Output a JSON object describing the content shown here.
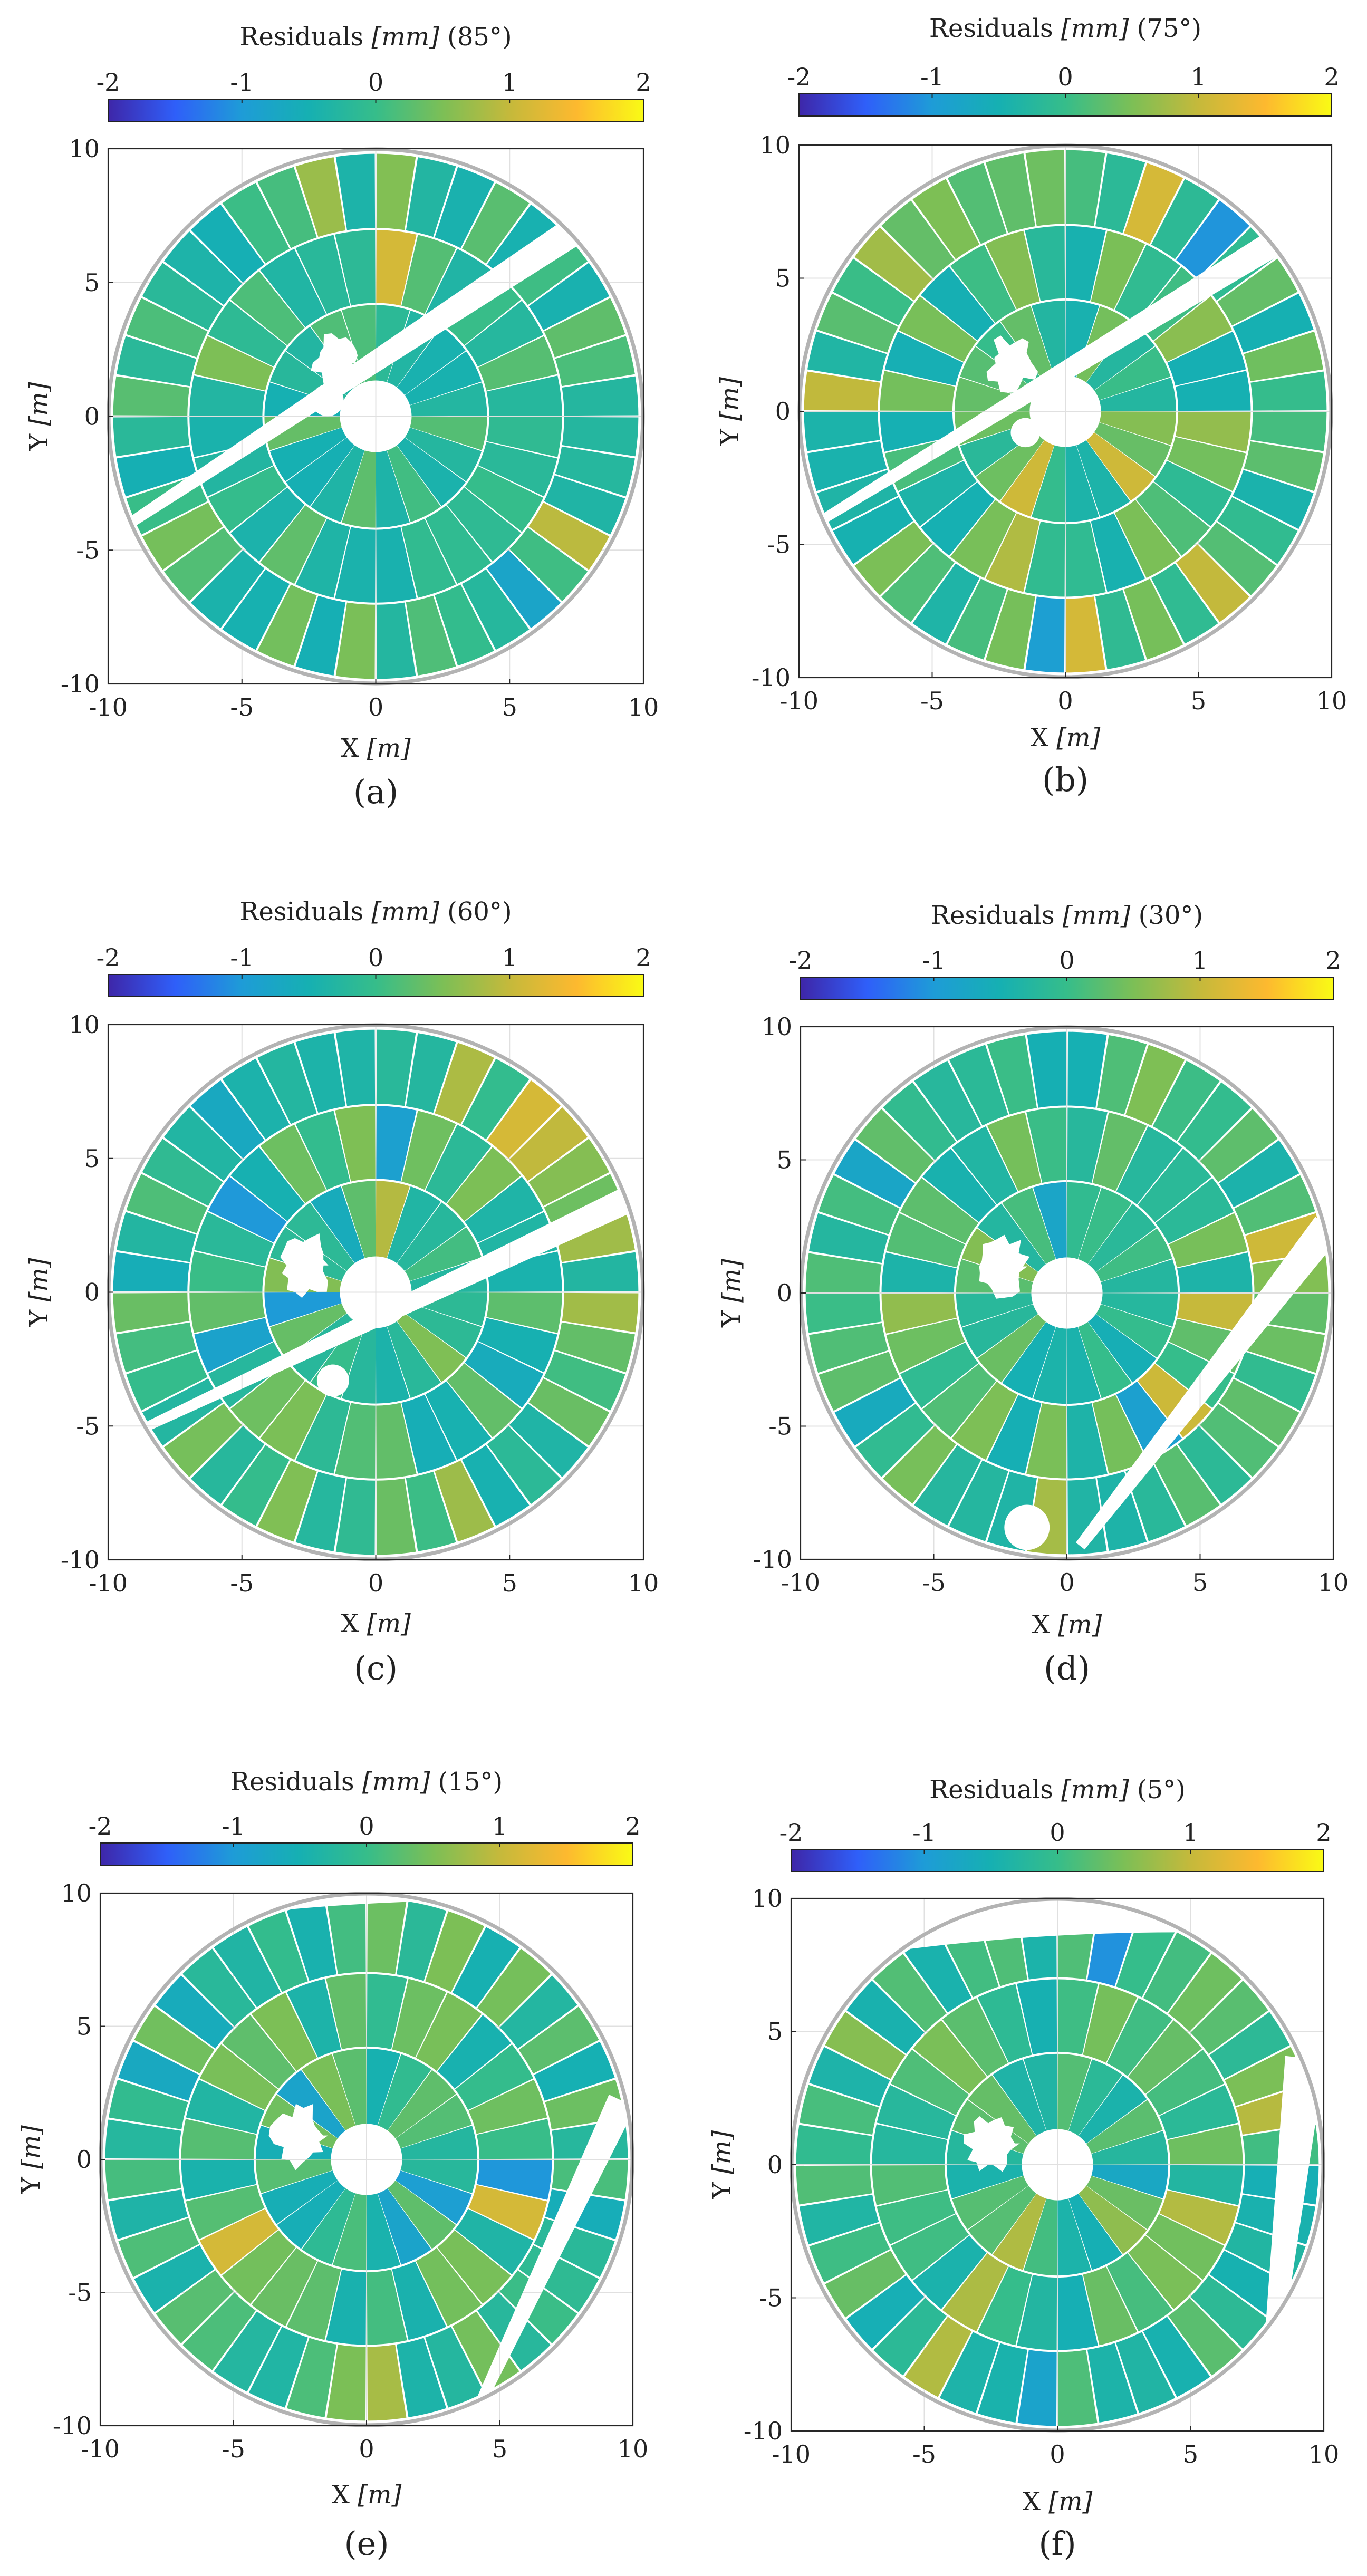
{
  "colorbar": {
    "ticks": [
      "-2",
      "-1",
      "0",
      "1",
      "2"
    ],
    "stops": [
      "#3e26a8",
      "#2f5ff9",
      "#1e9cd7",
      "#16b0b2",
      "#36bd8a",
      "#7cbf56",
      "#c5b93b",
      "#fdb92f",
      "#f9fb15"
    ]
  },
  "ring_color": "#b3b3b3",
  "grid_color": "#e0e0e0",
  "chart_data": [
    {
      "type": "scatter",
      "panel": "(a)",
      "title": "Residuals [mm] (85°)",
      "title_main": "Residuals ",
      "title_unit": "[mm]",
      "title_angle": " (85°)",
      "xlabel_main": "X ",
      "xlabel_unit": "[m]",
      "ylabel_main": "Y ",
      "ylabel_unit": "[m]",
      "xlim": [
        -10,
        10
      ],
      "ylim": [
        -10,
        10
      ],
      "clim": [
        -2,
        2
      ],
      "xticks": [
        "-10",
        "-5",
        "0",
        "5",
        "10"
      ],
      "yticks": [
        "10",
        "5",
        "0",
        "-5",
        "-10"
      ],
      "seed": 11,
      "gaps": [
        {
          "kind": "strip",
          "x1": -9.5,
          "y1": -4.2,
          "x2": 7.5,
          "y2": 7.0,
          "w": 0.55
        },
        {
          "kind": "disk",
          "x": -1.8,
          "y": 0.6,
          "r": 0.6
        },
        {
          "kind": "blob",
          "x": -1.5,
          "y": 2.0,
          "r": 1.1
        },
        {
          "kind": "disk",
          "x": 0.0,
          "y": 0.0,
          "r": 0.95
        }
      ]
    },
    {
      "type": "scatter",
      "panel": "(b)",
      "title": "Residuals [mm] (75°)",
      "title_main": "Residuals ",
      "title_unit": "[mm]",
      "title_angle": " (75°)",
      "xlabel_main": "X ",
      "xlabel_unit": "[m]",
      "ylabel_main": "Y ",
      "ylabel_unit": "[m]",
      "xlim": [
        -10,
        10
      ],
      "ylim": [
        -10,
        10
      ],
      "clim": [
        -2,
        2
      ],
      "xticks": [
        "-10",
        "-5",
        "0",
        "5",
        "10"
      ],
      "yticks": [
        "10",
        "5",
        "0",
        "-5",
        "-10"
      ],
      "seed": 23,
      "gaps": [
        {
          "kind": "strip",
          "x1": -9.5,
          "y1": -4.3,
          "x2": 7.8,
          "y2": 6.3,
          "w": 0.5
        },
        {
          "kind": "disk",
          "x": -1.5,
          "y": -0.8,
          "r": 0.55
        },
        {
          "kind": "blob",
          "x": -2.0,
          "y": 1.8,
          "r": 1.1
        },
        {
          "kind": "disk",
          "x": 0.0,
          "y": 0.0,
          "r": 0.95
        }
      ]
    },
    {
      "type": "scatter",
      "panel": "(c)",
      "title": "Residuals [mm] (60°)",
      "title_main": "Residuals ",
      "title_unit": "[mm]",
      "title_angle": " (60°)",
      "xlabel_main": "X ",
      "xlabel_unit": "[m]",
      "ylabel_main": "Y ",
      "ylabel_unit": "[m]",
      "xlim": [
        -10,
        10
      ],
      "ylim": [
        -10,
        10
      ],
      "clim": [
        -2,
        2
      ],
      "xticks": [
        "-10",
        "-5",
        "0",
        "5",
        "10"
      ],
      "yticks": [
        "10",
        "5",
        "0",
        "-5",
        "-10"
      ],
      "seed": 37,
      "gaps": [
        {
          "kind": "strip",
          "x1": -8.5,
          "y1": -5.0,
          "x2": 9.5,
          "y2": 3.5,
          "w": 0.5
        },
        {
          "kind": "disk",
          "x": -1.6,
          "y": -3.3,
          "r": 0.6
        },
        {
          "kind": "blob",
          "x": -2.6,
          "y": 1.0,
          "r": 1.2
        },
        {
          "kind": "disk",
          "x": 0.0,
          "y": 0.0,
          "r": 0.95
        }
      ]
    },
    {
      "type": "scatter",
      "panel": "(d)",
      "title": "Residuals [mm] (30°)",
      "title_main": "Residuals ",
      "title_unit": "[mm]",
      "title_angle": " (30°)",
      "xlabel_main": "X ",
      "xlabel_unit": "[m]",
      "ylabel_main": "Y ",
      "ylabel_unit": "[m]",
      "xlim": [
        -10,
        10
      ],
      "ylim": [
        -10,
        10
      ],
      "clim": [
        -2,
        2
      ],
      "xticks": [
        "-10",
        "-5",
        "0",
        "5",
        "10"
      ],
      "yticks": [
        "10",
        "5",
        "0",
        "-5",
        "-10"
      ],
      "seed": 51,
      "gaps": [
        {
          "kind": "strip",
          "x1": 0.5,
          "y1": -9.5,
          "x2": 9.8,
          "y2": 2.5,
          "w": 0.6
        },
        {
          "kind": "disk",
          "x": -1.5,
          "y": -8.8,
          "r": 0.85
        },
        {
          "kind": "blob",
          "x": -2.5,
          "y": 1.0,
          "r": 1.2
        },
        {
          "kind": "disk",
          "x": 0.0,
          "y": 0.0,
          "r": 0.95
        }
      ]
    },
    {
      "type": "scatter",
      "panel": "(e)",
      "title": "Residuals [mm] (15°)",
      "title_main": "Residuals ",
      "title_unit": "[mm]",
      "title_angle": " (15°)",
      "xlabel_main": "X ",
      "xlabel_unit": "[m]",
      "ylabel_main": "Y ",
      "ylabel_unit": "[m]",
      "xlim": [
        -10,
        10
      ],
      "ylim": [
        -10,
        10
      ],
      "clim": [
        -2,
        2
      ],
      "xticks": [
        "-10",
        "-5",
        "0",
        "5",
        "10"
      ],
      "yticks": [
        "10",
        "5",
        "0",
        "-5",
        "-10"
      ],
      "seed": 67,
      "gaps": [
        {
          "kind": "strip",
          "x1": 4.2,
          "y1": -9.3,
          "x2": 9.6,
          "y2": 2.2,
          "w": 0.55
        },
        {
          "kind": "cap",
          "yFrom": 9.2
        },
        {
          "kind": "blob",
          "x": -2.5,
          "y": 0.9,
          "r": 1.2
        },
        {
          "kind": "disk",
          "x": 0.0,
          "y": 0.0,
          "r": 0.95
        }
      ]
    },
    {
      "type": "scatter",
      "panel": "(f)",
      "title": "Residuals [mm] (5°)",
      "title_main": "Residuals ",
      "title_unit": "[mm]",
      "title_angle": " (5°)",
      "xlabel_main": "X ",
      "xlabel_unit": "[m]",
      "ylabel_main": "Y ",
      "ylabel_unit": "[m]",
      "xlim": [
        -10,
        10
      ],
      "ylim": [
        -10,
        10
      ],
      "clim": [
        -2,
        2
      ],
      "xticks": [
        "-10",
        "-5",
        "0",
        "5",
        "10"
      ],
      "yticks": [
        "10",
        "5",
        "0",
        "-5",
        "-10"
      ],
      "seed": 83,
      "gaps": [
        {
          "kind": "strip",
          "x1": 7.9,
          "y1": -8.5,
          "x2": 9.3,
          "y2": 4.0,
          "w": 0.75
        },
        {
          "kind": "cap",
          "yFrom": 8.2
        },
        {
          "kind": "blob",
          "x": -2.5,
          "y": 0.8,
          "r": 1.2
        },
        {
          "kind": "disk",
          "x": 0.0,
          "y": 0.0,
          "r": 0.95
        }
      ]
    }
  ]
}
